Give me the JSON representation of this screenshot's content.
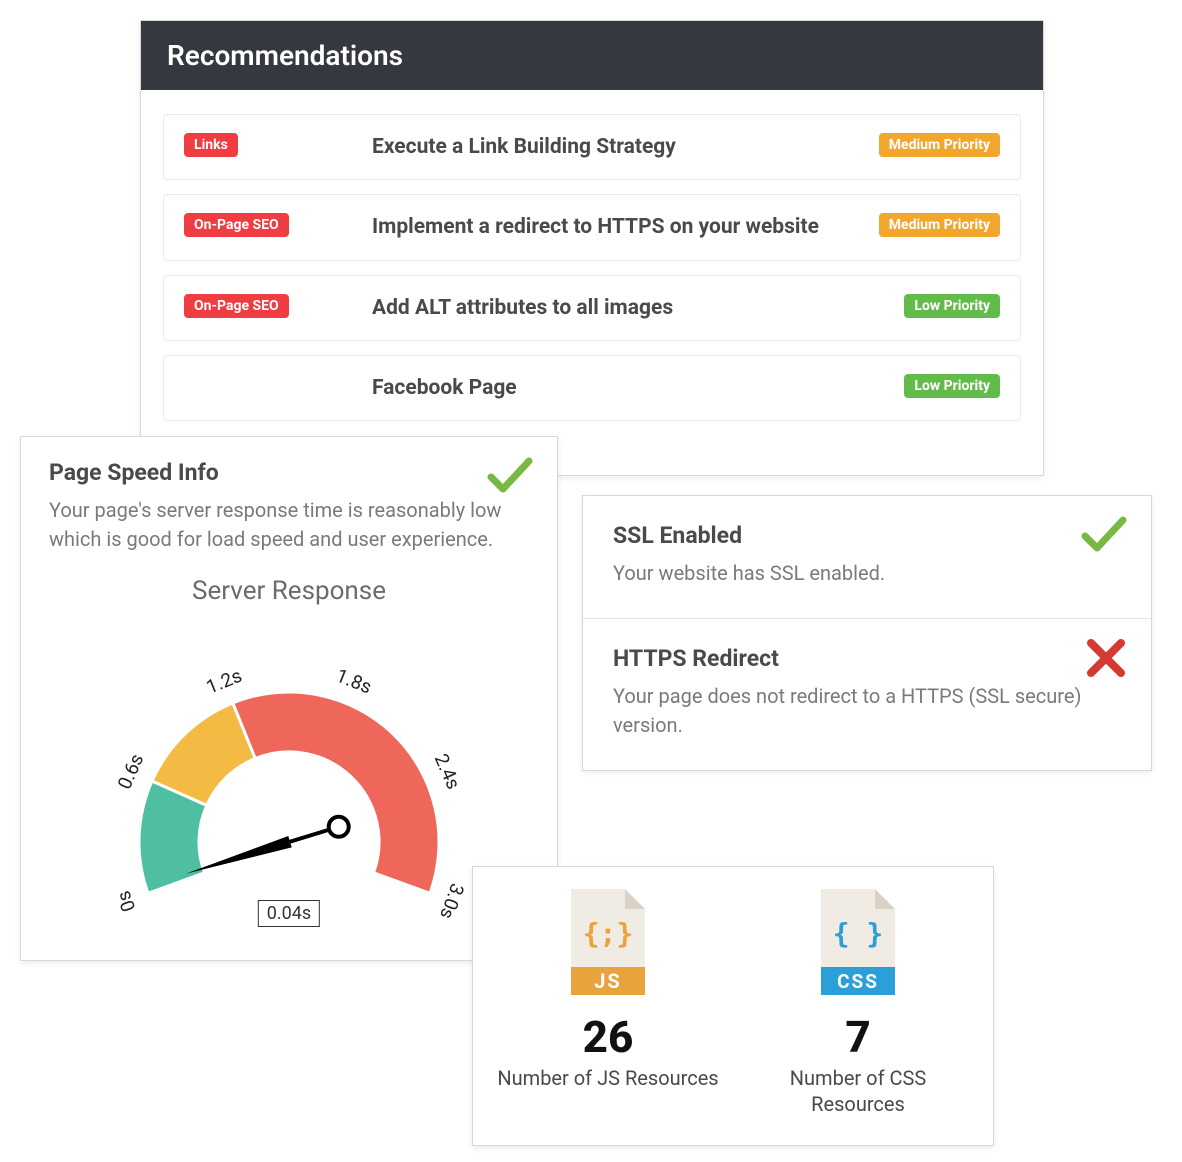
{
  "colors": {
    "header_bg": "#35393f",
    "tag_red": "#ef3d42",
    "priority_medium": "#f3a62e",
    "priority_low": "#63bb4c",
    "check_green": "#78b943",
    "cross_red": "#d43a2f",
    "gauge_green": "#4fbfa1",
    "gauge_yellow": "#f3bb44",
    "gauge_red": "#ef665b",
    "js_accent": "#e8a33d",
    "css_accent": "#2a9fd8",
    "file_bg": "#f0ece3",
    "file_fold": "#d9d3c7",
    "text_dark": "#4a4a4a",
    "text_muted": "#7a7a7a"
  },
  "recommendations": {
    "title": "Recommendations",
    "items": [
      {
        "category": "Links",
        "title": "Execute a Link Building Strategy",
        "priority": "Medium Priority",
        "priority_color": "#f3a62e"
      },
      {
        "category": "On-Page SEO",
        "title": "Implement a redirect to HTTPS on your website",
        "priority": "Medium Priority",
        "priority_color": "#f3a62e"
      },
      {
        "category": "On-Page SEO",
        "title": "Add ALT attributes to all images",
        "priority": "Low Priority",
        "priority_color": "#63bb4c"
      },
      {
        "category": "",
        "title": "Facebook Page",
        "priority": "Low Priority",
        "priority_color": "#63bb4c"
      }
    ],
    "category_color": "#ef3d42"
  },
  "page_speed": {
    "title": "Page Speed Info",
    "description": "Your page's server response time is reasonably low which is good for load speed and user experience.",
    "status": "pass",
    "gauge": {
      "title": "Server Response",
      "value_label": "0.04s",
      "value_seconds": 0.04,
      "ticks": [
        "0s",
        "0.6s",
        "1.2s",
        "1.8s",
        "2.4s",
        "3.0s"
      ],
      "range_max": 3.0,
      "segments": [
        {
          "from": 0.0,
          "to": 0.6,
          "color": "#4fbfa1"
        },
        {
          "from": 0.6,
          "to": 1.2,
          "color": "#f3bb44"
        },
        {
          "from": 1.2,
          "to": 3.0,
          "color": "#ef665b"
        }
      ],
      "arc_inner_radius": 90,
      "arc_outer_radius": 150,
      "start_angle_deg": 200,
      "end_angle_deg": -20
    }
  },
  "ssl": {
    "enabled": {
      "title": "SSL Enabled",
      "description": "Your website has SSL enabled.",
      "status": "pass"
    },
    "redirect": {
      "title": "HTTPS Redirect",
      "description": "Your page does not redirect to a HTTPS (SSL secure) version.",
      "status": "fail"
    }
  },
  "resources": {
    "js": {
      "count": "26",
      "label": "Number of JS Resources",
      "badge": "JS",
      "glyph": "{;}"
    },
    "css": {
      "count": "7",
      "label": "Number of CSS Resources",
      "badge": "CSS",
      "glyph": "{ }"
    }
  }
}
